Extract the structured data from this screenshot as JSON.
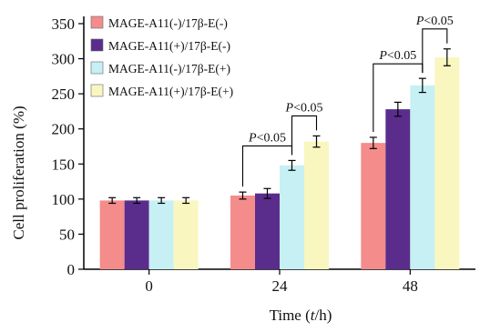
{
  "chart_data": {
    "type": "bar",
    "xlabel_prefix": "Time (",
    "xlabel_var": "t",
    "xlabel_suffix": "/h)",
    "ylabel": "Cell proliferation (%)",
    "ylim": [
      0,
      350
    ],
    "yticks": [
      0,
      50,
      100,
      150,
      200,
      250,
      300,
      350
    ],
    "categories": [
      "0",
      "24",
      "48"
    ],
    "legend_position": "top-left",
    "series": [
      {
        "name": "MAGE-A11(-)/17β-E(-)",
        "color": "#f48c8c",
        "values": [
          98,
          105,
          180
        ],
        "errors": [
          4,
          5,
          8
        ]
      },
      {
        "name": "MAGE-A11(+)/17β-E(-)",
        "color": "#5a2d8c",
        "values": [
          98,
          108,
          228
        ],
        "errors": [
          4,
          7,
          10
        ]
      },
      {
        "name": "MAGE-A11(-)/17β-E(+)",
        "color": "#c6f0f4",
        "values": [
          98,
          148,
          262
        ],
        "errors": [
          4,
          7,
          10
        ]
      },
      {
        "name": "MAGE-A11(+)/17β-E(+)",
        "color": "#f9f6c0",
        "values": [
          98,
          182,
          302
        ],
        "errors": [
          4,
          8,
          12
        ]
      }
    ],
    "annotations": [
      {
        "italic": "P",
        "text": "<0.05",
        "category": 1,
        "from_series": 0,
        "to_series": 2,
        "level": 0
      },
      {
        "italic": "P",
        "text": "<0.05",
        "category": 1,
        "from_series": 2,
        "to_series": 3,
        "level": 1
      },
      {
        "italic": "P",
        "text": "<0.05",
        "category": 2,
        "from_series": 0,
        "to_series": 2,
        "level": 0
      },
      {
        "italic": "P",
        "text": "<0.05",
        "category": 2,
        "from_series": 2,
        "to_series": 3,
        "level": 1
      }
    ]
  }
}
